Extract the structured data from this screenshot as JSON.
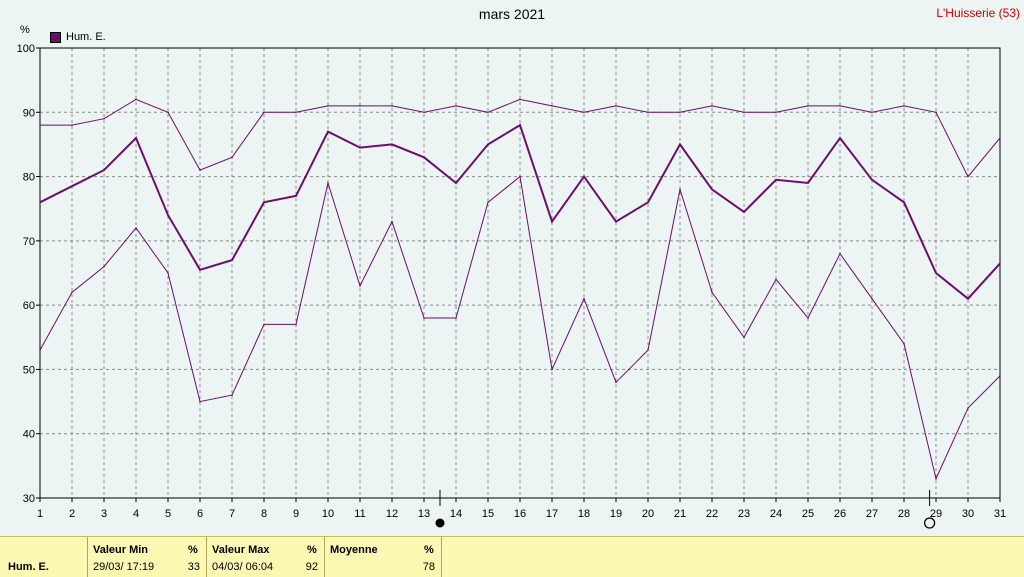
{
  "header": {
    "title": "mars 2021",
    "station": "L'Huisserie (53)",
    "unit": "%"
  },
  "legend": {
    "label": "Hum. E.",
    "color": "#6a0f6a"
  },
  "colors": {
    "series": "#6a0f6a",
    "grid": "#8a8a8a",
    "background": "#ecf4f4"
  },
  "chart_data": {
    "type": "line",
    "x": [
      1,
      2,
      3,
      4,
      5,
      6,
      7,
      8,
      9,
      10,
      11,
      12,
      13,
      14,
      15,
      16,
      17,
      18,
      19,
      20,
      21,
      22,
      23,
      24,
      25,
      26,
      27,
      28,
      29,
      30,
      31
    ],
    "ylim": [
      30,
      100
    ],
    "yticks": [
      30,
      40,
      50,
      60,
      70,
      80,
      90,
      100
    ],
    "grid": true,
    "legend_position": "top-left",
    "series": [
      {
        "name": "Hum. E.",
        "role": "max",
        "values": [
          88,
          88,
          89,
          92,
          90,
          81,
          83,
          90,
          90,
          91,
          91,
          91,
          90,
          91,
          90,
          92,
          91,
          90,
          91,
          90,
          90,
          91,
          90,
          90,
          91,
          91,
          90,
          91,
          90,
          80,
          86
        ]
      },
      {
        "name": "Hum. E.",
        "role": "mean",
        "values": [
          76,
          78.5,
          81,
          86,
          74,
          65.5,
          67,
          76,
          77,
          87,
          84.5,
          85,
          83,
          79,
          85,
          88,
          73,
          80,
          73,
          76,
          85,
          78,
          74.5,
          79.5,
          79,
          86,
          79.5,
          76,
          65,
          61,
          66.5
        ]
      },
      {
        "name": "Hum. E.",
        "role": "min",
        "values": [
          53,
          62,
          66,
          72,
          65,
          45,
          46,
          57,
          57,
          79,
          63,
          73,
          58,
          58,
          76,
          80,
          50,
          61,
          48,
          53,
          78,
          62,
          55,
          64,
          58,
          68,
          61,
          54,
          33,
          44,
          49
        ]
      }
    ],
    "markers": [
      {
        "day": 13.5,
        "symbol": "filled-circle"
      },
      {
        "day": 28.8,
        "symbol": "open-circle"
      }
    ]
  },
  "summary": {
    "row_label": "Hum. E.",
    "min": {
      "header": "Valeur Min",
      "unit": "%",
      "when": "29/03/  17:19",
      "value": "33"
    },
    "max": {
      "header": "Valeur Max",
      "unit": "%",
      "when": "04/03/  06:04",
      "value": "92"
    },
    "mean": {
      "header": "Moyenne",
      "unit": "%",
      "value": "78"
    }
  }
}
